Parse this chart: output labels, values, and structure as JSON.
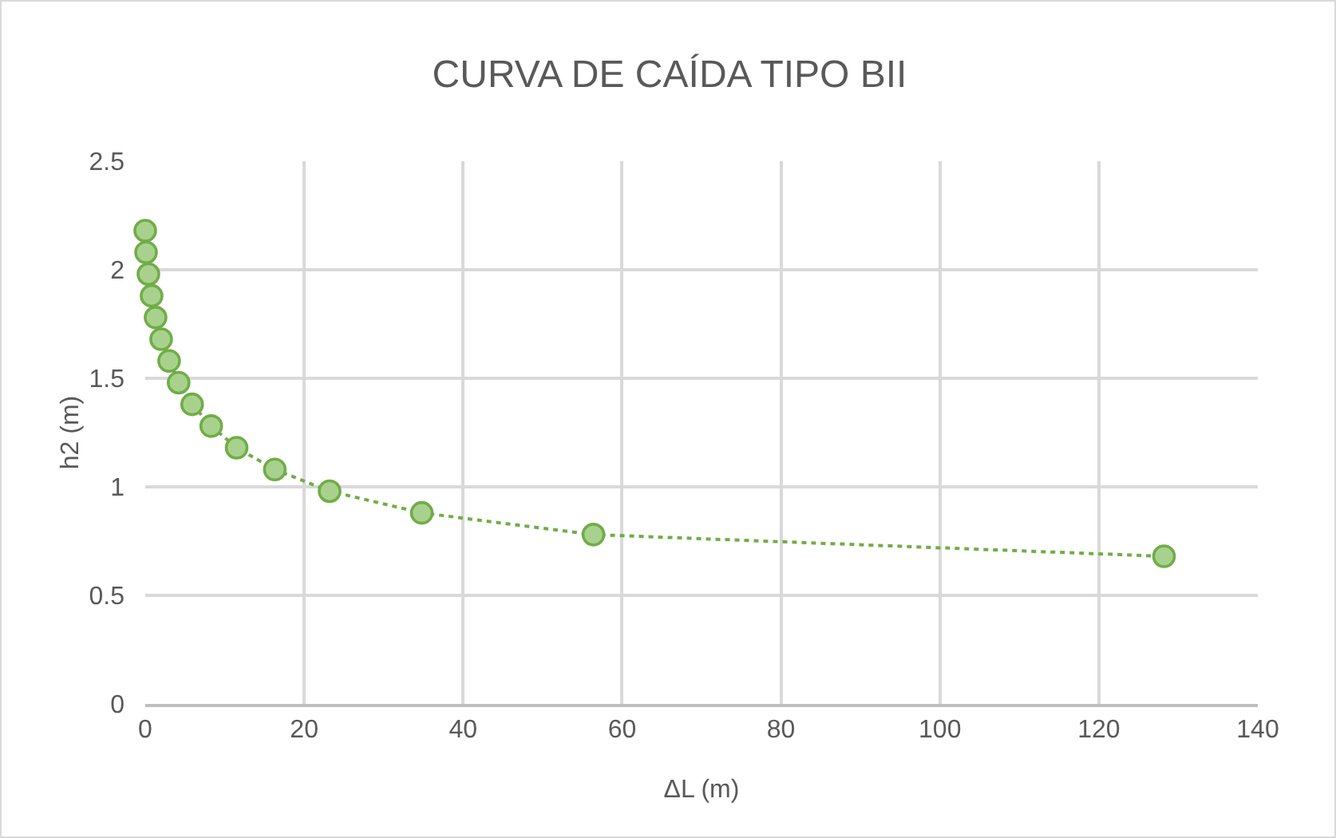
{
  "chart_data": {
    "type": "line",
    "title": "CURVA DE CAÍDA TIPO BII",
    "xlabel": "ΔL (m)",
    "ylabel": "h2 (m)",
    "x": [
      0,
      0.1,
      0.4,
      0.8,
      1.3,
      2.0,
      3.0,
      4.2,
      5.9,
      8.3,
      11.5,
      16.3,
      23.2,
      34.8,
      56.4,
      128.2
    ],
    "values": [
      2.18,
      2.08,
      1.98,
      1.88,
      1.78,
      1.68,
      1.58,
      1.48,
      1.38,
      1.28,
      1.18,
      1.08,
      0.98,
      0.88,
      0.78,
      0.68
    ],
    "color": "#70ad47",
    "marker": "circle",
    "line_style": "dotted",
    "xlim": [
      0,
      140
    ],
    "xticks": [
      0,
      20,
      40,
      60,
      80,
      100,
      120,
      140
    ],
    "ylim": [
      0,
      2.5
    ],
    "yticks": [
      0,
      0.5,
      1,
      1.5,
      2,
      2.5
    ],
    "grid": true
  }
}
